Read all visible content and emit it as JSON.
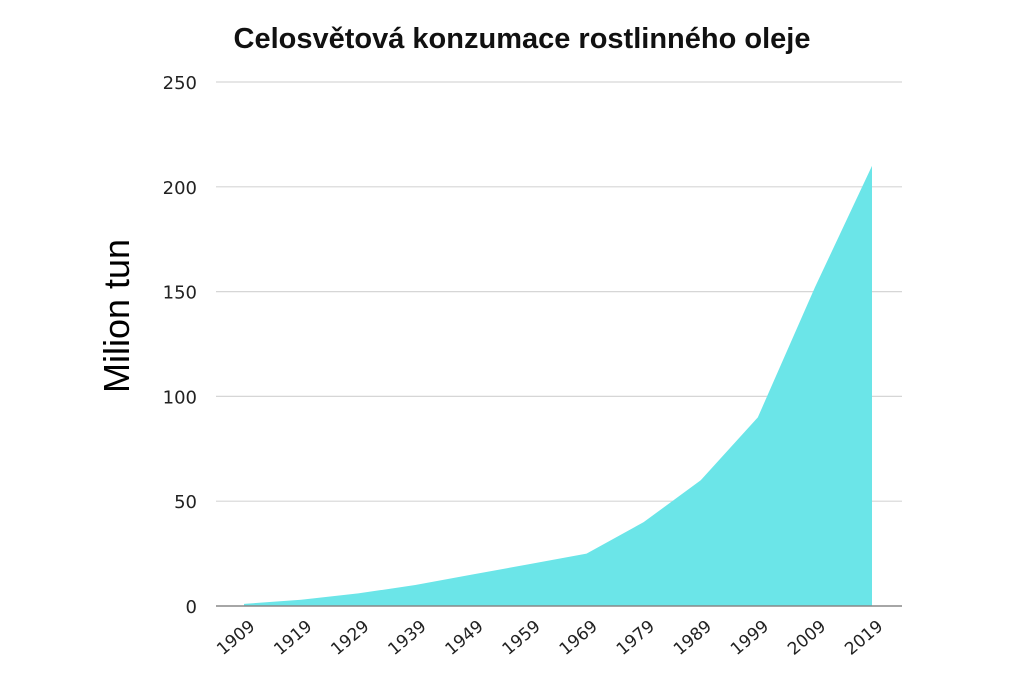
{
  "chart_data": {
    "type": "area",
    "title": "Celosvětová konzumace rostlinného oleje",
    "xlabel": "",
    "ylabel": "Milion tun",
    "x": [
      "1909",
      "1919",
      "1929",
      "1939",
      "1949",
      "1959",
      "1969",
      "1979",
      "1989",
      "1999",
      "2009",
      "2019"
    ],
    "series": [
      {
        "values": [
          1,
          3,
          6,
          10,
          15,
          20,
          25,
          40,
          60,
          90,
          152,
          210
        ]
      }
    ],
    "ylim": [
      0,
      250
    ],
    "yticks": [
      "0",
      "50",
      "100",
      "150",
      "200",
      "250"
    ],
    "grid": true,
    "fill_color": "#6be5e8",
    "grid_color": "#d6d6d6"
  }
}
